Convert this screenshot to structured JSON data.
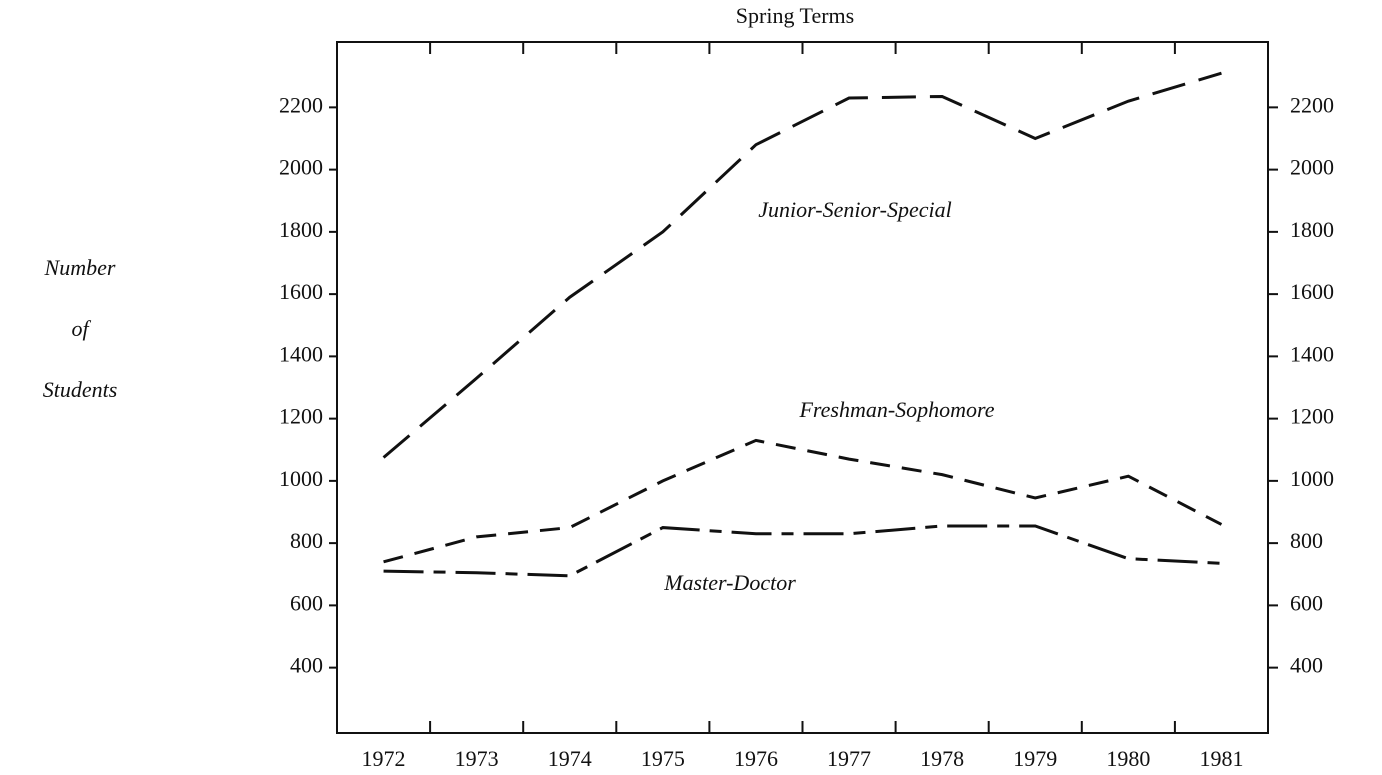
{
  "chart_data": {
    "type": "line",
    "title": "Spring Terms",
    "ylabel": [
      "Number",
      "of",
      "Students"
    ],
    "categories": [
      "1972",
      "1973",
      "1974",
      "1975",
      "1976",
      "1977",
      "1978",
      "1979",
      "1980",
      "1981"
    ],
    "series": [
      {
        "name": "Junior-Senior-Special",
        "color": "#111111",
        "values": [
          1075,
          1330,
          1590,
          1800,
          2080,
          2230,
          2235,
          2100,
          2220,
          2310
        ]
      },
      {
        "name": "Freshman-Sophomore",
        "color": "#111111",
        "values": [
          740,
          820,
          850,
          1000,
          1130,
          1070,
          1020,
          945,
          1015,
          860
        ]
      },
      {
        "name": "Master-Doctor",
        "color": "#111111",
        "values": [
          710,
          705,
          695,
          850,
          830,
          830,
          855,
          855,
          750,
          735
        ]
      }
    ],
    "ylim": [
      190,
      2410
    ],
    "yticks": [
      400,
      600,
      800,
      1000,
      1200,
      1400,
      1600,
      1800,
      2000,
      2200
    ]
  }
}
